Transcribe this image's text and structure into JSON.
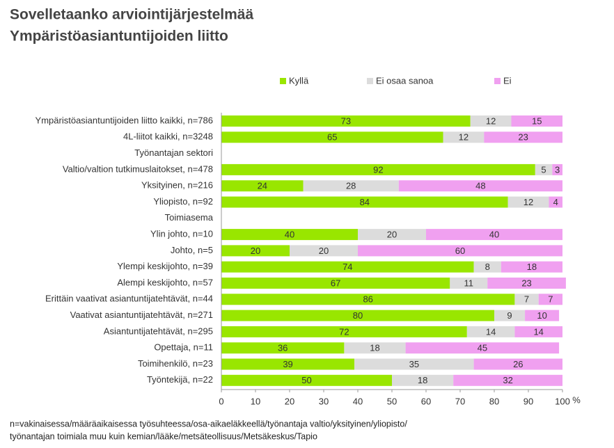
{
  "chart_data": {
    "type": "stacked-barh",
    "title": [
      "Sovelletaanko arviointijärjestelmää",
      "Ympäristöasiantuntijoiden liitto"
    ],
    "categories": [
      "Ympäristöasiantuntijoiden liitto kaikki, n=786",
      "4L-liitot kaikki, n=3248",
      "Työnantajan sektori",
      "Valtio/valtion tutkimuslaitokset, n=478",
      "Yksityinen, n=216",
      "Yliopisto, n=92",
      "Toimiasema",
      "Ylin johto, n=10",
      "Johto, n=5",
      "Ylempi keskijohto, n=39",
      "Alempi keskijohto, n=57",
      "Erittäin vaativat asiantuntijatehtävät, n=44",
      "Vaativat asiantuntijatehtävät, n=271",
      "Asiantuntijatehtävät, n=295",
      "Opettaja, n=11",
      "Toimihenkilö, n=23",
      "Työntekijä, n=22"
    ],
    "series": [
      {
        "name": "Kyllä",
        "color": "#99e600",
        "values": [
          73,
          65,
          null,
          92,
          24,
          84,
          null,
          40,
          20,
          74,
          67,
          86,
          80,
          72,
          36,
          39,
          50
        ]
      },
      {
        "name": "Ei osaa sanoa",
        "color": "#dcdcdc",
        "values": [
          12,
          12,
          null,
          5,
          28,
          12,
          null,
          20,
          20,
          8,
          11,
          7,
          9,
          14,
          18,
          35,
          18
        ]
      },
      {
        "name": "Ei",
        "color": "#f0a0f0",
        "values": [
          15,
          23,
          null,
          3,
          48,
          4,
          null,
          40,
          60,
          18,
          23,
          7,
          10,
          14,
          45,
          26,
          32
        ]
      }
    ],
    "xlim": [
      0,
      100
    ],
    "xticks": [
      0,
      10,
      20,
      30,
      40,
      50,
      60,
      70,
      80,
      90,
      100
    ],
    "xlabel": "%",
    "legend": "top",
    "notes": [
      "n=vakinaisessa/määräaikaisessa työsuhteessa/osa-aikaeläkkeellä/työnantaja valtio/yksityinen/yliopisto/",
      "työnantajan toimiala muu kuin kemian/lääke/metsäteollisuus/Metsäkeskus/Tapio"
    ]
  }
}
